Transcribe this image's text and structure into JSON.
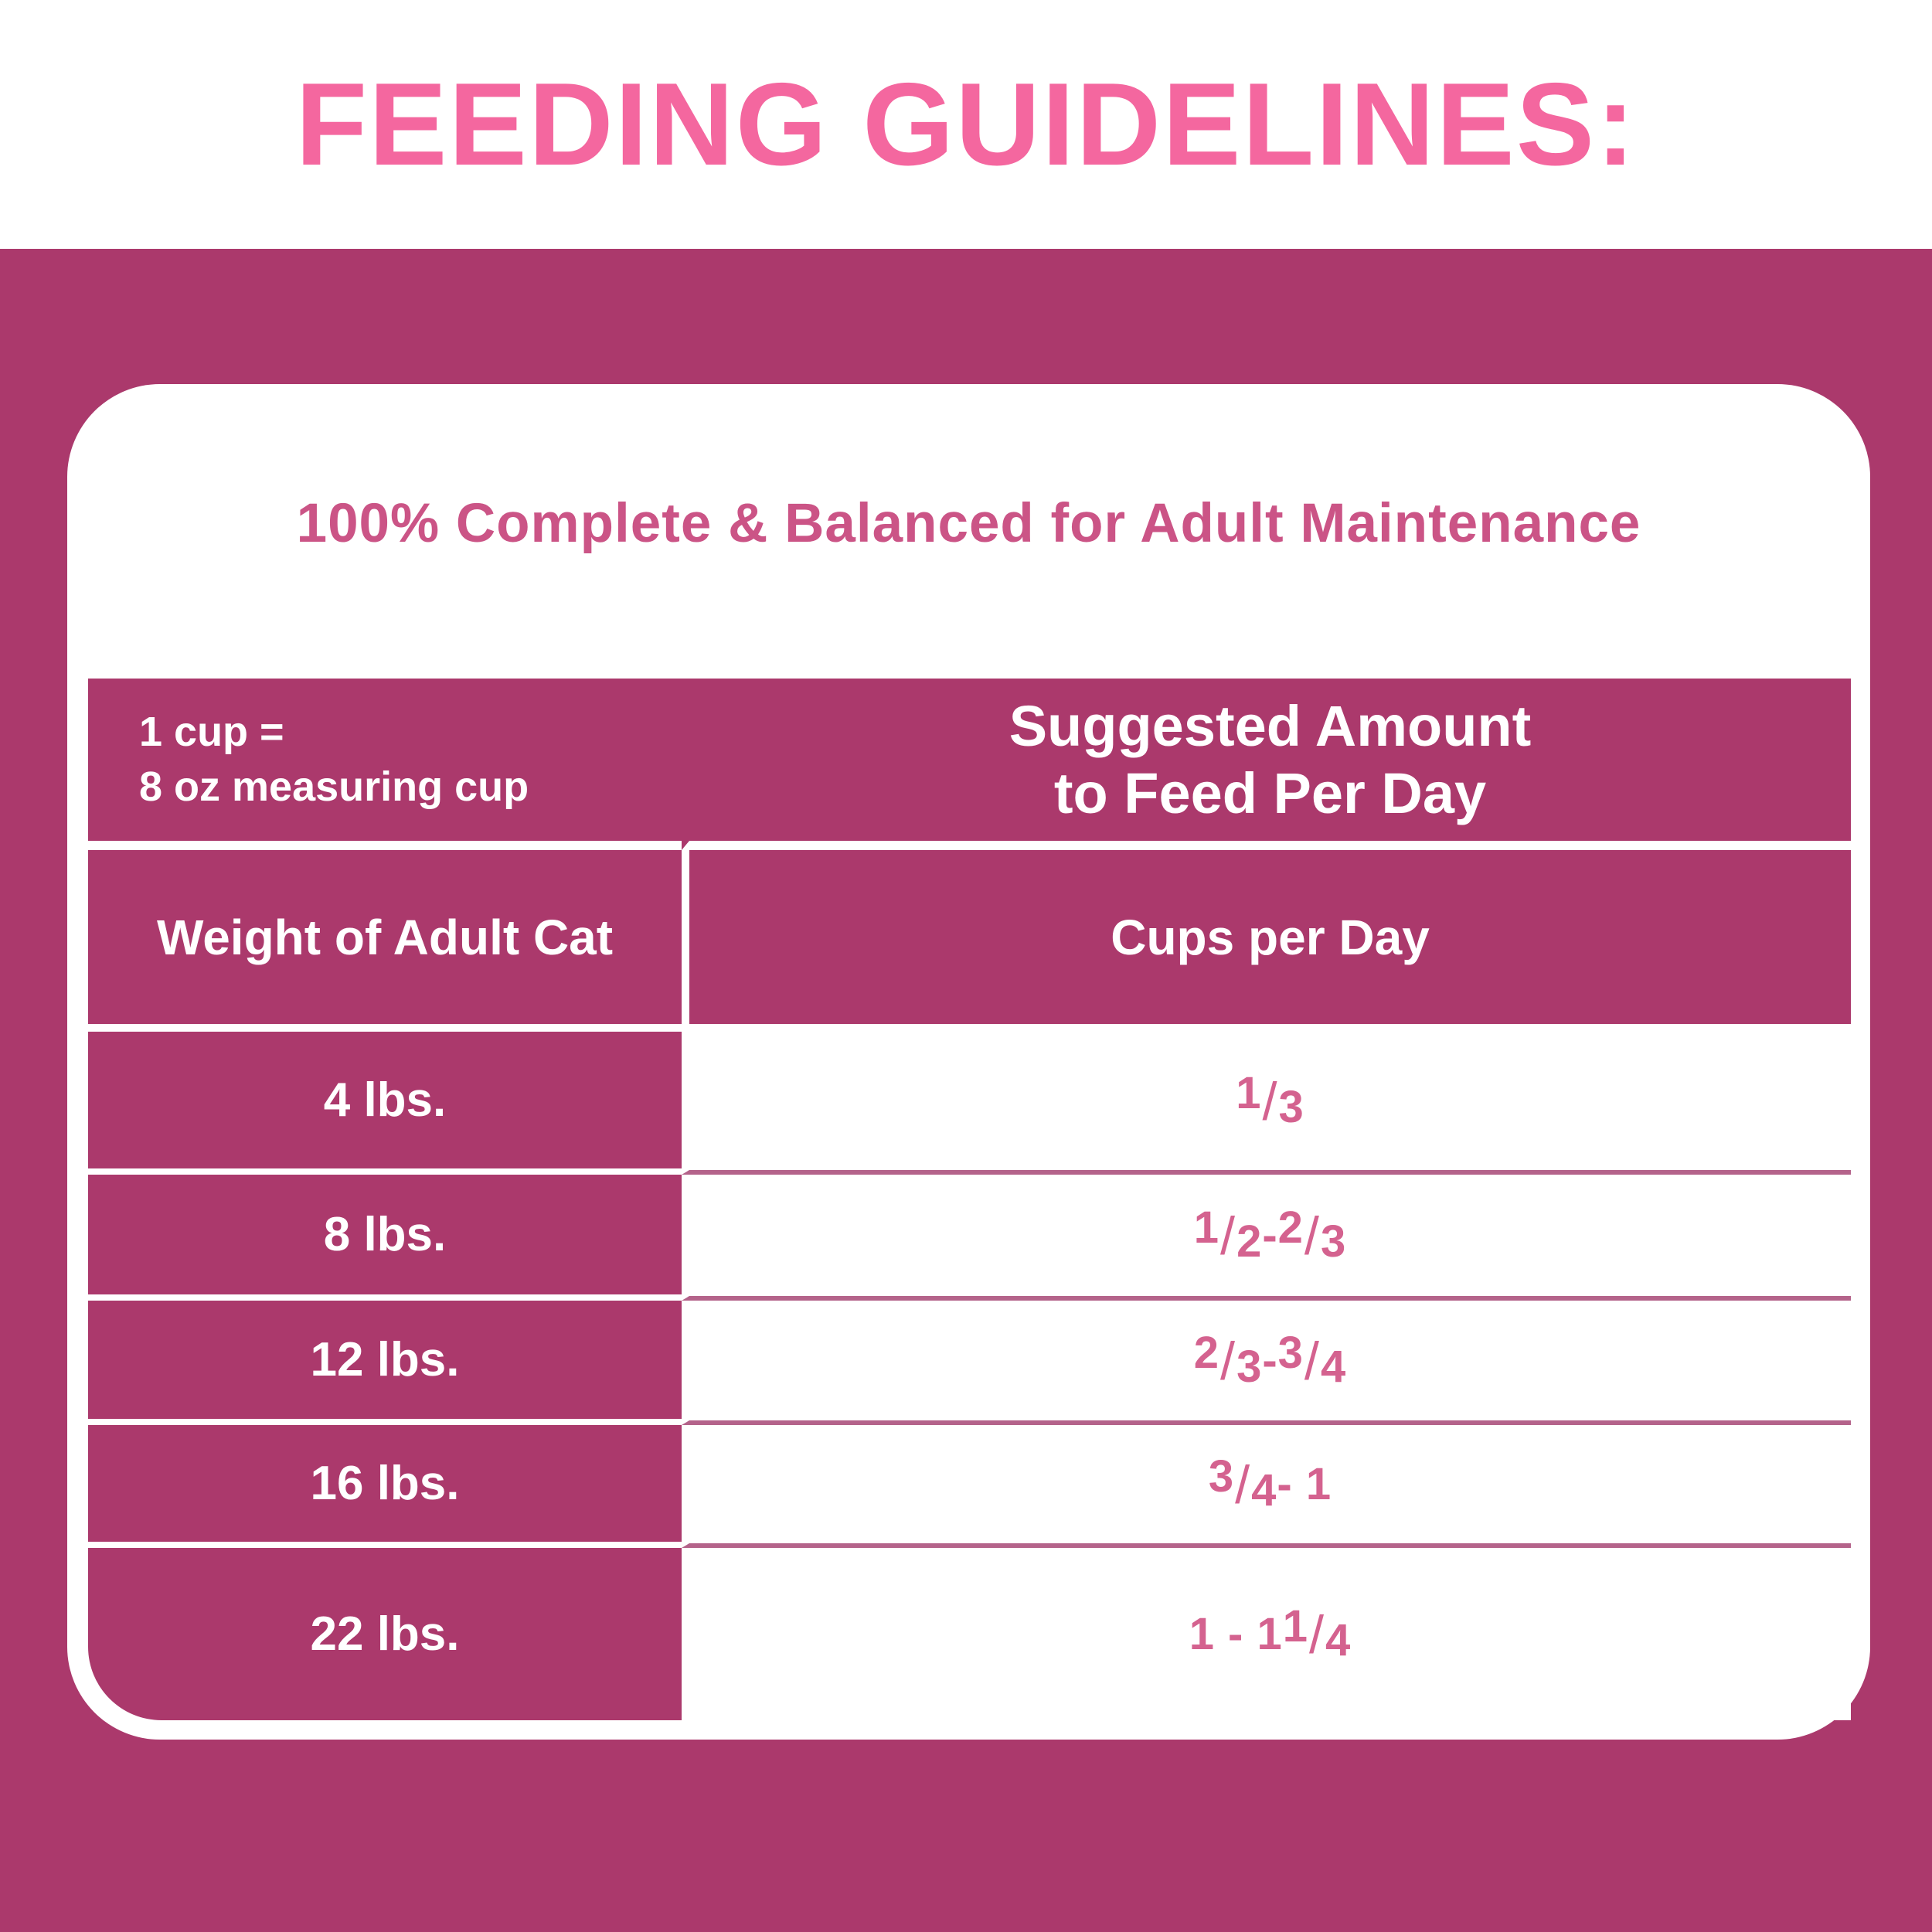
{
  "page": {
    "title": "FEEDING GUIDELINES:",
    "colors": {
      "magenta": "#ab396c",
      "title_pink": "#f4679f",
      "heading_pink": "#cb5486",
      "fraction_pink": "#d4628f",
      "line_pink": "#b4638a",
      "white": "#ffffff"
    }
  },
  "card": {
    "heading": "100% Complete & Balanced for Adult Maintenance",
    "table": {
      "cup_note_line1": "1 cup =",
      "cup_note_line2": "8 oz measuring cup",
      "suggested_line1": "Suggested Amount",
      "suggested_line2": "to Feed Per Day",
      "columns": [
        "Weight of Adult Cat",
        "Cups per Day"
      ],
      "rows": [
        {
          "weight": "4 lbs.",
          "cups": "1/3"
        },
        {
          "weight": "8 lbs.",
          "cups": "1/2 - 2/3"
        },
        {
          "weight": "12 lbs.",
          "cups": "2/3 - 3/4"
        },
        {
          "weight": "16 lbs.",
          "cups": "3/4 - 1"
        },
        {
          "weight": "22 lbs.",
          "cups": "1 - 1 1/4"
        }
      ]
    }
  }
}
